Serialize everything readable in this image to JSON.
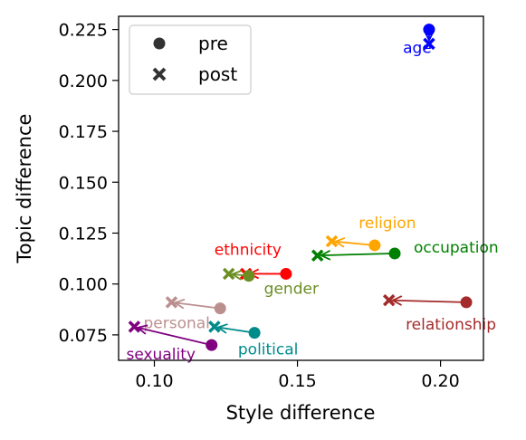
{
  "chart_data": {
    "type": "scatter",
    "title": "",
    "xlabel": "Style difference",
    "ylabel": "Topic difference",
    "xlim": [
      0.0875,
      0.215
    ],
    "ylim": [
      0.0625,
      0.2315
    ],
    "xticks": [
      "0.10",
      "0.15",
      "0.20"
    ],
    "yticks": [
      "0.075",
      "0.100",
      "0.125",
      "0.150",
      "0.175",
      "0.200",
      "0.225"
    ],
    "legend": {
      "placement": "top-left",
      "entries": [
        {
          "label": "pre",
          "marker": "circle"
        },
        {
          "label": "post",
          "marker": "x"
        }
      ]
    },
    "points": [
      {
        "label": "age",
        "color": "#0000ff",
        "pre": [
          0.196,
          0.225
        ],
        "post": [
          0.196,
          0.218
        ]
      },
      {
        "label": "religion",
        "color": "#ffa500",
        "pre": [
          0.177,
          0.119
        ],
        "post": [
          0.162,
          0.121
        ]
      },
      {
        "label": "occupation",
        "color": "#008000",
        "pre": [
          0.184,
          0.115
        ],
        "post": [
          0.157,
          0.114
        ]
      },
      {
        "label": "ethnicity",
        "color": "#ff0000",
        "pre": [
          0.146,
          0.105
        ],
        "post": [
          0.132,
          0.105
        ]
      },
      {
        "label": "gender",
        "color": "#6b8e23",
        "pre": [
          0.133,
          0.104
        ],
        "post": [
          0.126,
          0.105
        ]
      },
      {
        "label": "relationship",
        "color": "#a52a2a",
        "pre": [
          0.209,
          0.091
        ],
        "post": [
          0.182,
          0.092
        ]
      },
      {
        "label": "personal",
        "color": "#bc8f8f",
        "pre": [
          0.123,
          0.088
        ],
        "post": [
          0.106,
          0.091
        ]
      },
      {
        "label": "political",
        "color": "#008b8b",
        "pre": [
          0.135,
          0.076
        ],
        "post": [
          0.121,
          0.079
        ]
      },
      {
        "label": "sexuality",
        "color": "#800080",
        "pre": [
          0.12,
          0.07
        ],
        "post": [
          0.093,
          0.079
        ]
      }
    ]
  }
}
